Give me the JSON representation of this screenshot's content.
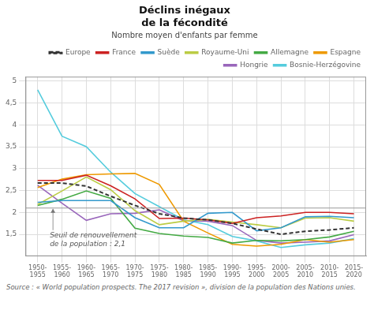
{
  "chart_data": {
    "type": "line",
    "title": "Déclins inégaux\nde la fécondité",
    "subtitle": "Nombre moyen d'enfants par femme",
    "source": "Source : « World population prospects. The 2017 revision », division de la population des Nations unies.",
    "categories": [
      "1950-\n1955",
      "1955-\n1960",
      "1960-\n1965",
      "1965-\n1970",
      "1970-\n1975",
      "1975-\n1980",
      "1980-\n1985",
      "1985-\n1990",
      "1990-\n1995",
      "1995-\n2000",
      "2000-\n2005",
      "2005-\n2010",
      "2010-\n2015",
      "2015-\n2020"
    ],
    "series": [
      {
        "name": "Europe",
        "color": "#333333",
        "line_style": "dashed",
        "values": [
          2.67,
          2.67,
          2.6,
          2.37,
          2.16,
          1.97,
          1.87,
          1.83,
          1.75,
          1.62,
          1.5,
          1.57,
          1.6,
          1.65
        ]
      },
      {
        "name": "France",
        "color": "#cc2222",
        "line_style": "solid",
        "values": [
          2.73,
          2.73,
          2.85,
          2.61,
          2.31,
          1.86,
          1.87,
          1.83,
          1.75,
          1.88,
          1.92,
          2.0,
          2.0,
          1.97
        ]
      },
      {
        "name": "Suède",
        "color": "#3399cc",
        "line_style": "solid",
        "values": [
          2.23,
          2.27,
          2.27,
          2.27,
          1.88,
          1.65,
          1.65,
          1.98,
          2.0,
          1.58,
          1.65,
          1.9,
          1.91,
          1.88
        ]
      },
      {
        "name": "Royaume-Uni",
        "color": "#bbcc44",
        "line_style": "solid",
        "values": [
          2.18,
          2.49,
          2.81,
          2.52,
          2.04,
          1.72,
          1.8,
          1.84,
          1.78,
          1.72,
          1.65,
          1.87,
          1.88,
          1.8
        ]
      },
      {
        "name": "Allemagne",
        "color": "#44aa44",
        "line_style": "solid",
        "values": [
          2.16,
          2.3,
          2.49,
          2.32,
          1.64,
          1.52,
          1.46,
          1.43,
          1.3,
          1.36,
          1.35,
          1.38,
          1.44,
          1.57
        ]
      },
      {
        "name": "Espagne",
        "color": "#ee9900",
        "line_style": "solid",
        "values": [
          2.57,
          2.76,
          2.86,
          2.88,
          2.89,
          2.64,
          1.8,
          1.53,
          1.27,
          1.23,
          1.27,
          1.38,
          1.32,
          1.38
        ]
      },
      {
        "name": "Hongrie",
        "color": "#9966bb",
        "line_style": "solid",
        "values": [
          2.62,
          2.21,
          1.82,
          1.97,
          1.98,
          2.06,
          1.81,
          1.8,
          1.7,
          1.36,
          1.3,
          1.32,
          1.35,
          1.49
        ]
      },
      {
        "name": "Bosnie-Herzégovine",
        "color": "#55ccdd",
        "line_style": "solid",
        "values": [
          4.8,
          3.74,
          3.5,
          2.92,
          2.43,
          2.13,
          1.83,
          1.72,
          1.45,
          1.35,
          1.2,
          1.26,
          1.3,
          1.4
        ]
      }
    ],
    "ylim": [
      1.0,
      5.1
    ],
    "yticks": [
      {
        "value": 1.5,
        "label": "1,5"
      },
      2,
      {
        "value": 2.5,
        "label": "2,5"
      },
      3,
      {
        "value": 3.5,
        "label": "3,5"
      },
      4,
      {
        "value": 4.5,
        "label": "4,5"
      },
      5
    ],
    "grid": true,
    "legend": "upper right",
    "annotations": [
      {
        "text": "Seuil de renouvellement\nde la population : 2,1",
        "y": 2.1
      }
    ]
  }
}
